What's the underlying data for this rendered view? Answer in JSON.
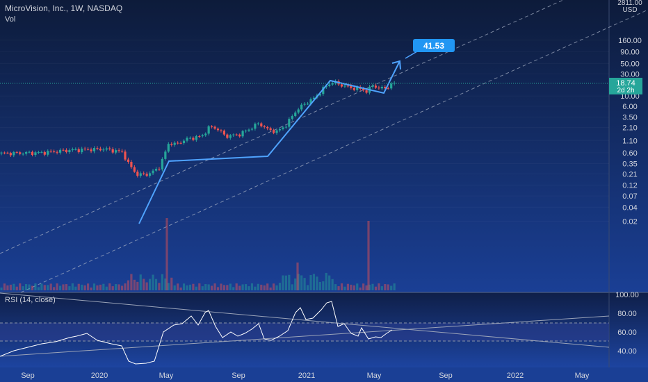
{
  "header": {
    "symbol_line": "MicroVision, Inc., 1W, NASDAQ",
    "volume_label": "Vol",
    "axis_top_label": "2811.00",
    "currency": "USD"
  },
  "price_axis": {
    "ticks": [
      "160.00",
      "90.00",
      "50.00",
      "30.00",
      "10.00",
      "6.00",
      "3.50",
      "2.10",
      "1.10",
      "0.60",
      "0.35",
      "0.21",
      "0.12",
      "0.07",
      "0.04",
      "0.02"
    ]
  },
  "current_price": {
    "value": "18.74",
    "countdown": "2d 2h",
    "color": "#26a69a"
  },
  "target_label": {
    "value": "41.53",
    "color": "#2196f3"
  },
  "rsi": {
    "title": "RSI (14, close)",
    "ticks": [
      "100.00",
      "80.00",
      "60.00",
      "40.00"
    ],
    "upper_band": 70,
    "lower_band": 50
  },
  "time_axis": {
    "ticks": [
      "Sep",
      "2020",
      "May",
      "Sep",
      "2021",
      "May",
      "Sep",
      "2022",
      "May"
    ]
  },
  "colors": {
    "background_top": "#0d1b3a",
    "background_bottom": "#1a3f95",
    "up": "#26a69a",
    "down": "#ef5350",
    "rsi_line": "#ffffff",
    "trendline": "#4fa3ff",
    "channel": "#aab4c8"
  },
  "chart_data": [
    {
      "type": "candlestick",
      "scale": "log",
      "series": [
        {
          "name": "MicroVision, Inc., 1W, NASDAQ",
          "x": [
            "2019-08-12",
            "2019-09-02",
            "2019-10-07",
            "2019-11-04",
            "2019-12-09",
            "2020-01-06",
            "2020-02-03",
            "2020-03-02",
            "2020-03-23",
            "2020-04-13",
            "2020-05-04",
            "2020-05-25",
            "2020-06-15",
            "2020-07-13",
            "2020-08-10",
            "2020-09-07",
            "2020-10-05",
            "2020-11-02",
            "2020-11-23",
            "2020-12-14",
            "2021-01-04",
            "2021-01-25",
            "2021-02-15",
            "2021-03-15",
            "2021-04-05",
            "2021-04-26",
            "2021-05-17",
            "2021-05-31"
          ],
          "values": [
            0.55,
            0.57,
            0.6,
            0.64,
            0.7,
            0.72,
            0.65,
            0.25,
            0.17,
            0.26,
            0.75,
            1.05,
            1.4,
            1.25,
            1.55,
            2.6,
            1.7,
            2.6,
            6.0,
            9.0,
            16.0,
            19.5,
            16.0,
            15.0,
            13.0,
            16.5,
            17.5,
            18.74
          ]
        }
      ],
      "current_price": 18.74,
      "projection_target": 41.53,
      "ylim": [
        0.02,
        160
      ]
    },
    {
      "type": "line",
      "series": [
        {
          "name": "RSI (14, close)",
          "x": [
            "2019-08",
            "2019-10",
            "2019-12",
            "2020-02",
            "2020-03",
            "2020-04",
            "2020-05",
            "2020-06",
            "2020-07",
            "2020-08",
            "2020-09",
            "2020-10",
            "2020-11",
            "2020-12",
            "2021-01",
            "2021-02",
            "2021-03",
            "2021-04",
            "2021-05",
            "2021-06"
          ],
          "values": [
            32,
            42,
            46,
            38,
            26,
            28,
            60,
            74,
            70,
            80,
            55,
            62,
            52,
            62,
            84,
            76,
            62,
            58,
            55,
            60
          ]
        }
      ],
      "bands": [
        70,
        50
      ],
      "ylim": [
        30,
        100
      ]
    }
  ]
}
